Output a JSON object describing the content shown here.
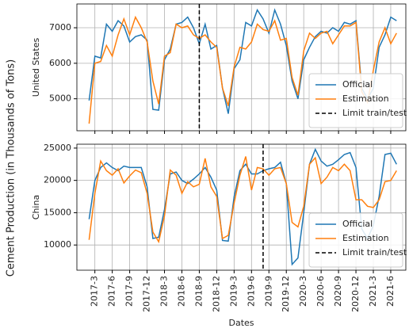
{
  "ylabel": "Cement Production (in Thousands of Tons)",
  "chart_data": [
    {
      "type": "line",
      "ylabel": "United States",
      "series": [
        {
          "name": "Official",
          "color": "#1f77b4",
          "values": [
            4950,
            6200,
            6150,
            7100,
            6900,
            7200,
            7050,
            6600,
            6750,
            6800,
            6650,
            4700,
            4680,
            6100,
            6400,
            7100,
            7150,
            7300,
            7000,
            6550,
            7100,
            6400,
            6500,
            5300,
            4580,
            5850,
            6100,
            7150,
            7050,
            7500,
            7250,
            6850,
            7500,
            7100,
            6500,
            5500,
            5000,
            6100,
            6450,
            6750,
            6900,
            6850,
            7000,
            6900,
            7150,
            7100,
            7200,
            5300,
            5000,
            5300,
            6450,
            6800,
            7300,
            7200
          ]
        },
        {
          "name": "Estimation",
          "color": "#ff7f0e",
          "values": [
            4300,
            6000,
            6050,
            6500,
            6200,
            6800,
            7250,
            6800,
            7300,
            7000,
            6600,
            5500,
            4850,
            6200,
            6300,
            7100,
            7000,
            7050,
            6800,
            6700,
            6800,
            6600,
            6450,
            5300,
            4800,
            5900,
            6450,
            6400,
            6600,
            7100,
            6950,
            6900,
            7200,
            6650,
            6700,
            5600,
            5100,
            6350,
            6850,
            6700,
            6850,
            6900,
            6550,
            6800,
            7050,
            7050,
            7150,
            5200,
            4900,
            5800,
            6600,
            7000,
            6550,
            6850
          ]
        }
      ],
      "split_at": 19,
      "vline_label": "Limit train/test",
      "ylim": [
        4100,
        7670
      ],
      "yticks": [
        5000,
        6000,
        7000
      ],
      "grid": true,
      "legend": "lower right"
    },
    {
      "type": "line",
      "ylabel": "China",
      "xlabel": "Dates",
      "categories": [
        null,
        "2017-3",
        null,
        null,
        "2017-6",
        null,
        null,
        "2017-9",
        null,
        null,
        "2017-12",
        null,
        null,
        "2018-3",
        null,
        null,
        "2018-6",
        null,
        null,
        "2018-9",
        null,
        null,
        "2018-12",
        null,
        null,
        "2019-3",
        null,
        null,
        "2019-6",
        null,
        null,
        "2019-9",
        null,
        null,
        "2019-12",
        null,
        null,
        "2020-3",
        null,
        null,
        "2020-6",
        null,
        null,
        "2020-9",
        null,
        null,
        "2020-12",
        null,
        null,
        "2021-3",
        null,
        null,
        "2021-6",
        null
      ],
      "series": [
        {
          "name": "Official",
          "color": "#1f77b4",
          "values": [
            14000,
            20000,
            22000,
            22700,
            22000,
            21500,
            22200,
            22000,
            22000,
            22000,
            19000,
            11000,
            11200,
            15500,
            21000,
            21300,
            20000,
            19500,
            20200,
            21000,
            22000,
            20500,
            18500,
            10700,
            10600,
            17500,
            21500,
            22500,
            21000,
            21000,
            21500,
            21800,
            22000,
            22800,
            19500,
            7000,
            8000,
            15000,
            22500,
            24800,
            23000,
            22200,
            22500,
            23200,
            24000,
            24300,
            22000,
            12500,
            11000,
            13000,
            17500,
            24000,
            24200,
            22500
          ]
        },
        {
          "name": "Estimation",
          "color": "#ff7f0e",
          "values": [
            10800,
            18000,
            23000,
            21500,
            20800,
            21800,
            19600,
            20700,
            21600,
            21200,
            18000,
            12000,
            10500,
            14500,
            21600,
            20800,
            18000,
            19800,
            19000,
            19400,
            23400,
            19000,
            17500,
            11000,
            11500,
            16500,
            20800,
            23700,
            18500,
            22000,
            21800,
            20800,
            21800,
            22000,
            19500,
            13500,
            12800,
            16000,
            22500,
            23500,
            19500,
            20500,
            22000,
            21500,
            22500,
            21500,
            17000,
            17000,
            16000,
            15800,
            17000,
            19800,
            20000,
            21500
          ]
        }
      ],
      "split_at": 30,
      "vline_label": "Limit train/test",
      "ylim": [
        6100,
        25600
      ],
      "yticks": [
        10000,
        15000,
        20000,
        25000
      ],
      "grid": true,
      "legend": "lower right"
    }
  ]
}
